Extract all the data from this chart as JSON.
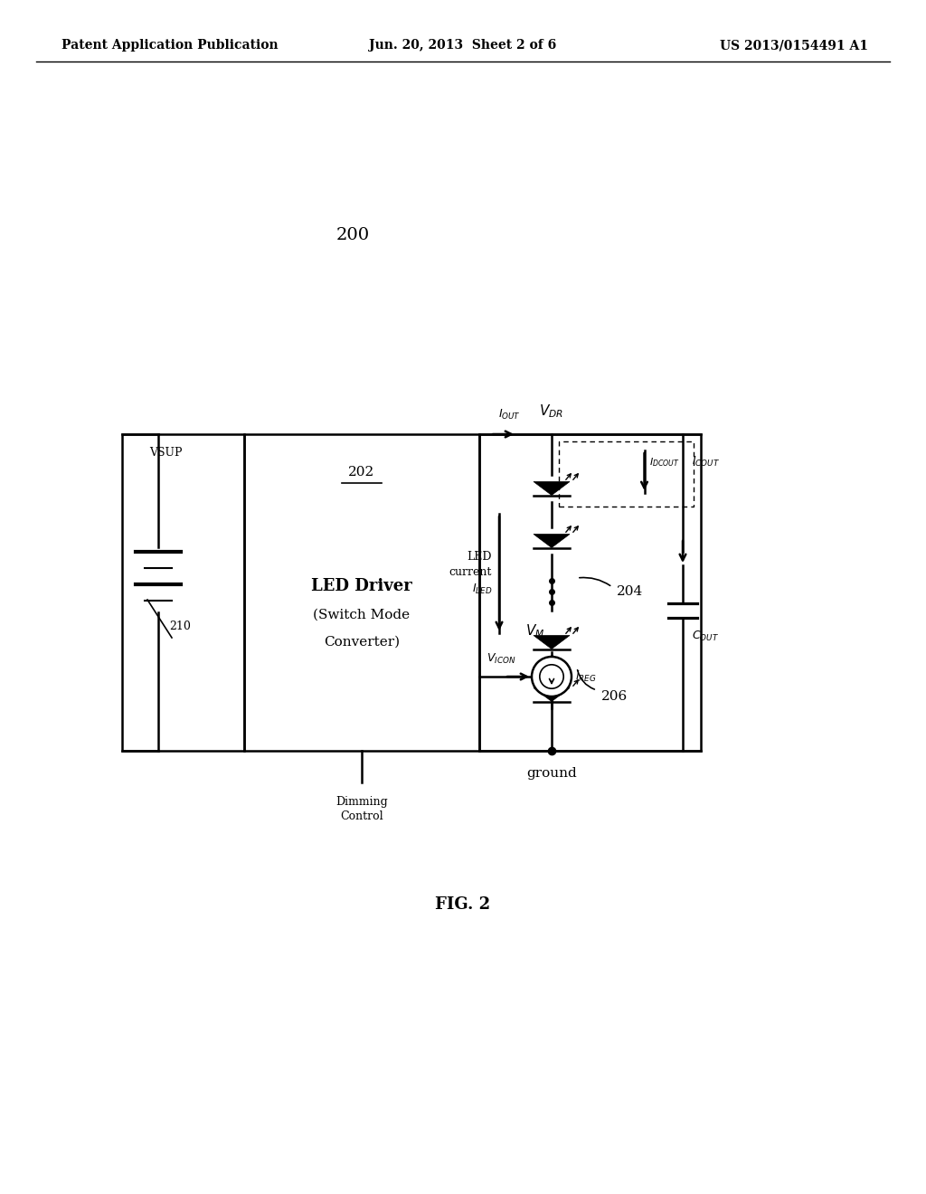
{
  "title_left": "Patent Application Publication",
  "title_center": "Jun. 20, 2013  Sheet 2 of 6",
  "title_right": "US 2013/0154491 A1",
  "fig_label": "FIG. 2",
  "diagram_number": "200",
  "bg_color": "#ffffff",
  "line_color": "#000000"
}
